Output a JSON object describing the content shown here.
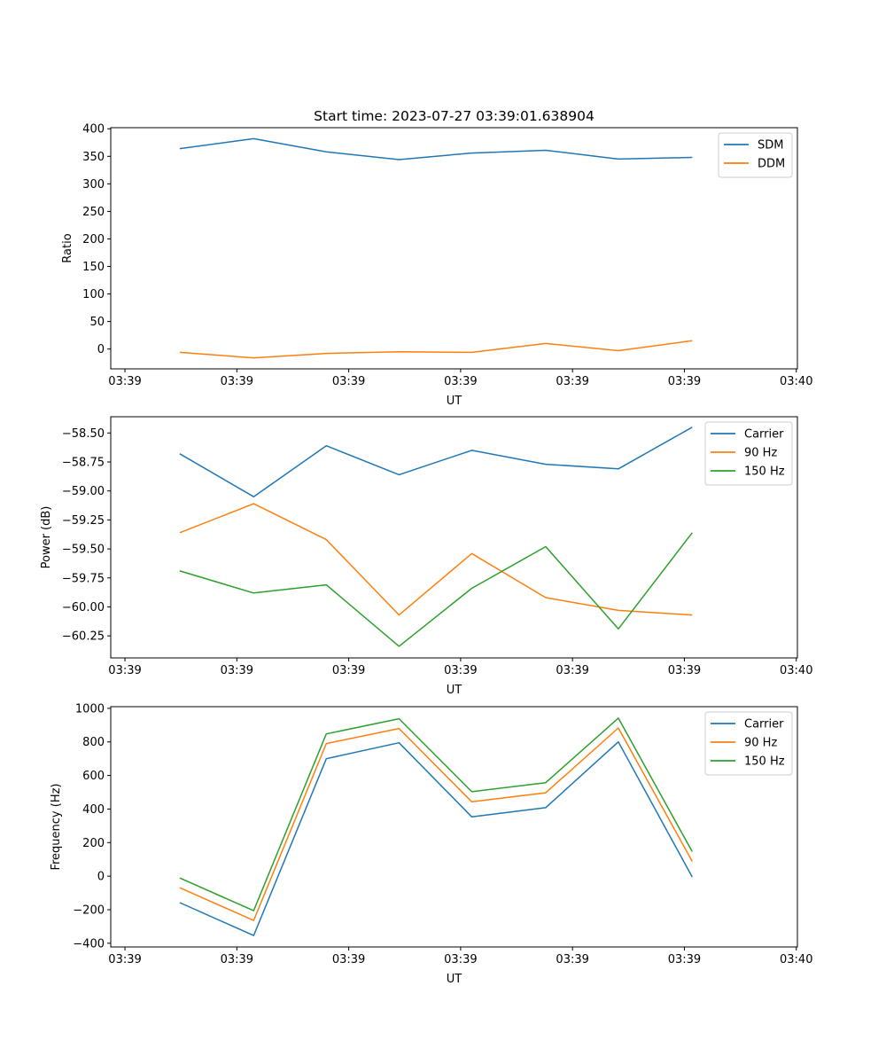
{
  "chart_data": [
    {
      "type": "line",
      "title": "Start time: 2023-07-27 03:39:01.638904",
      "xlabel": "UT",
      "ylabel": "Ratio",
      "x": [
        0.49,
        1.15,
        1.8,
        2.45,
        3.1,
        3.76,
        4.41,
        5.07
      ],
      "xlim": [
        -0.127,
        6.01
      ],
      "xticks": [
        0,
        1,
        2,
        3,
        4,
        5,
        6
      ],
      "xtick_labels": [
        "03:39",
        "03:39",
        "03:39",
        "03:39",
        "03:39",
        "03:39",
        "03:40"
      ],
      "ylim": [
        -36,
        402
      ],
      "yticks": [
        0,
        50,
        100,
        150,
        200,
        250,
        300,
        350,
        400
      ],
      "ytick_labels": [
        "0",
        "50",
        "100",
        "150",
        "200",
        "250",
        "300",
        "350",
        "400"
      ],
      "legend": "top-right",
      "series": [
        {
          "name": "SDM",
          "color": "#1f77b4",
          "values": [
            364,
            382,
            358,
            344,
            356,
            361,
            345,
            348
          ]
        },
        {
          "name": "DDM",
          "color": "#ff7f0e",
          "values": [
            -6,
            -16,
            -8,
            -5,
            -6,
            10,
            -3,
            15
          ]
        }
      ]
    },
    {
      "type": "line",
      "title": "",
      "xlabel": "UT",
      "ylabel": "Power (dB)",
      "x": [
        0.49,
        1.15,
        1.8,
        2.45,
        3.1,
        3.76,
        4.41,
        5.07
      ],
      "xlim": [
        -0.127,
        6.01
      ],
      "xticks": [
        0,
        1,
        2,
        3,
        4,
        5,
        6
      ],
      "xtick_labels": [
        "03:39",
        "03:39",
        "03:39",
        "03:39",
        "03:39",
        "03:39",
        "03:40"
      ],
      "ylim": [
        -60.44,
        -58.36
      ],
      "yticks": [
        -58.5,
        -58.75,
        -59.0,
        -59.25,
        -59.5,
        -59.75,
        -60.0,
        -60.25
      ],
      "ytick_labels": [
        "−58.50",
        "−58.75",
        "−59.00",
        "−59.25",
        "−59.50",
        "−59.75",
        "−60.00",
        "−60.25"
      ],
      "legend": "top-right",
      "series": [
        {
          "name": "Carrier",
          "color": "#1f77b4",
          "values": [
            -58.68,
            -59.05,
            -58.61,
            -58.86,
            -58.65,
            -58.77,
            -58.81,
            -58.45
          ]
        },
        {
          "name": "90 Hz",
          "color": "#ff7f0e",
          "values": [
            -59.36,
            -59.11,
            -59.42,
            -60.07,
            -59.54,
            -59.92,
            -60.03,
            -60.07
          ]
        },
        {
          "name": "150 Hz",
          "color": "#2ca02c",
          "values": [
            -59.69,
            -59.88,
            -59.81,
            -60.34,
            -59.84,
            -59.48,
            -60.19,
            -59.36
          ]
        }
      ]
    },
    {
      "type": "line",
      "title": "",
      "xlabel": "UT",
      "ylabel": "Frequency (Hz)",
      "x": [
        0.49,
        1.15,
        1.8,
        2.45,
        3.1,
        3.76,
        4.41,
        5.07
      ],
      "xlim": [
        -0.127,
        6.01
      ],
      "xticks": [
        0,
        1,
        2,
        3,
        4,
        5,
        6
      ],
      "xtick_labels": [
        "03:39",
        "03:39",
        "03:39",
        "03:39",
        "03:39",
        "03:39",
        "03:40"
      ],
      "ylim": [
        -422,
        1010
      ],
      "yticks": [
        -400,
        -200,
        0,
        200,
        400,
        600,
        800,
        1000
      ],
      "ytick_labels": [
        "−400",
        "−200",
        "0",
        "200",
        "400",
        "600",
        "800",
        "1000"
      ],
      "legend": "top-right",
      "series": [
        {
          "name": "Carrier",
          "color": "#1f77b4",
          "values": [
            -158,
            -354,
            700,
            795,
            353,
            408,
            800,
            -5
          ]
        },
        {
          "name": "90 Hz",
          "color": "#ff7f0e",
          "values": [
            -69,
            -264,
            790,
            880,
            443,
            497,
            883,
            88
          ]
        },
        {
          "name": "150 Hz",
          "color": "#2ca02c",
          "values": [
            -11,
            -206,
            848,
            938,
            503,
            557,
            942,
            146
          ]
        }
      ]
    }
  ]
}
